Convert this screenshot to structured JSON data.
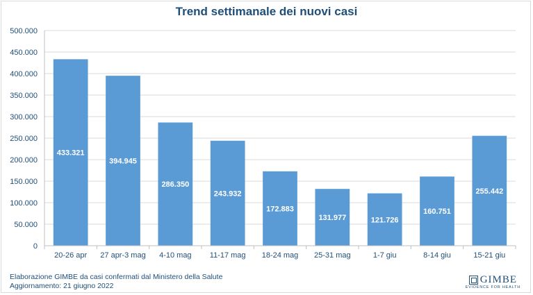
{
  "chart_data": {
    "type": "bar",
    "title": "Trend settimanale dei nuovi casi",
    "categories": [
      "20-26 apr",
      "27 apr-3 mag",
      "4-10 mag",
      "11-17 mag",
      "18-24 mag",
      "25-31 mag",
      "1-7 giu",
      "8-14 giu",
      "15-21 giu"
    ],
    "values": [
      433321,
      394945,
      286350,
      243932,
      172883,
      131977,
      121726,
      160751,
      255442
    ],
    "data_labels": [
      "433.321",
      "394.945",
      "286.350",
      "243.932",
      "172.883",
      "131.977",
      "121.726",
      "160.751",
      "255.442"
    ],
    "y_ticks": [
      0,
      50000,
      100000,
      150000,
      200000,
      250000,
      300000,
      350000,
      400000,
      450000,
      500000
    ],
    "y_tick_labels": [
      "0",
      "50.000",
      "100.000",
      "150.000",
      "200.000",
      "250.000",
      "300.000",
      "350.000",
      "400.000",
      "450.000",
      "500.000"
    ],
    "ylim": [
      0,
      500000
    ],
    "grid": true,
    "bar_color": "#5b9bd5",
    "label_color": "#ffffff",
    "xlabel": "",
    "ylabel": ""
  },
  "footer": {
    "line1": "Elaborazione GIMBE da casi confermati dal Ministero della Salute",
    "line2": "Aggiornamento: 21 giugno 2022"
  },
  "logo": {
    "name": "GIMBE",
    "tagline": "EVIDENCE FOR HEALTH"
  }
}
